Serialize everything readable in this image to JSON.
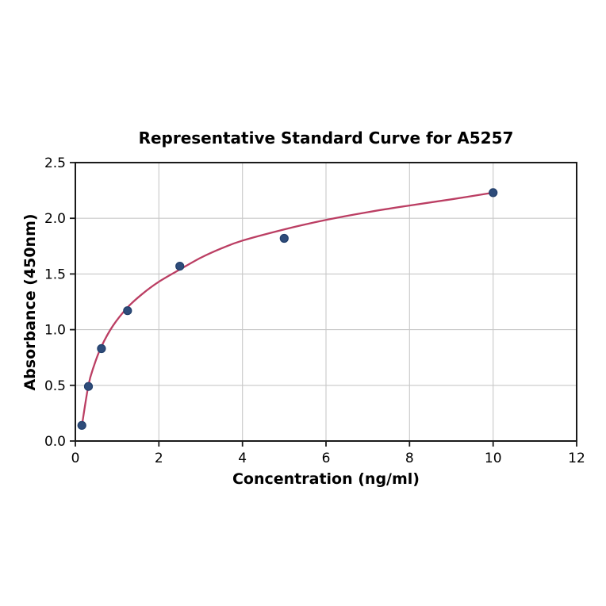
{
  "figure": {
    "background": "#ffffff"
  },
  "chart_data": {
    "type": "scatter",
    "title": "Representative Standard Curve for A5257",
    "xlabel": "Concentration (ng/ml)",
    "ylabel": "Absorbance (450nm)",
    "xlim": [
      0,
      12
    ],
    "ylim": [
      0,
      2.5
    ],
    "xticks": [
      0,
      2,
      4,
      6,
      8,
      10,
      12
    ],
    "yticks": [
      0.0,
      0.5,
      1.0,
      1.5,
      2.0,
      2.5
    ],
    "grid": true,
    "legend": "none",
    "points": [
      [
        0.156,
        0.14
      ],
      [
        0.3125,
        0.49
      ],
      [
        0.625,
        0.83
      ],
      [
        1.25,
        1.17
      ],
      [
        2.5,
        1.57
      ],
      [
        5,
        1.82
      ],
      [
        10,
        2.23
      ]
    ],
    "fit_curve": [
      [
        0.156,
        0.135
      ],
      [
        0.3125,
        0.5
      ],
      [
        0.45,
        0.68
      ],
      [
        0.625,
        0.85
      ],
      [
        0.9,
        1.035
      ],
      [
        1.25,
        1.2
      ],
      [
        1.6,
        1.32
      ],
      [
        2,
        1.43
      ],
      [
        2.5,
        1.54
      ],
      [
        3,
        1.645
      ],
      [
        3.5,
        1.73
      ],
      [
        4,
        1.8
      ],
      [
        5,
        1.9
      ],
      [
        6,
        1.985
      ],
      [
        7,
        2.055
      ],
      [
        8,
        2.115
      ],
      [
        9,
        2.17
      ],
      [
        10,
        2.23
      ]
    ],
    "colors": {
      "curve": "#bb3e63",
      "marker_fill": "#2e4c7a",
      "marker_edge": "#223f6b",
      "grid": "#c8c8c8",
      "axis": "#1a1a1a",
      "text": "#000000",
      "background": "#ffffff"
    }
  }
}
